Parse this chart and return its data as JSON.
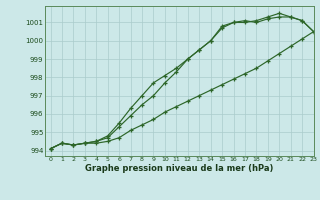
{
  "bg_color": "#cce8e8",
  "grid_color": "#aacccc",
  "line_color": "#2d6629",
  "title": "Graphe pression niveau de la mer (hPa)",
  "xlim": [
    -0.5,
    23
  ],
  "ylim": [
    993.7,
    1001.9
  ],
  "yticks": [
    994,
    995,
    996,
    997,
    998,
    999,
    1000,
    1001
  ],
  "xticks": [
    0,
    1,
    2,
    3,
    4,
    5,
    6,
    7,
    8,
    9,
    10,
    11,
    12,
    13,
    14,
    15,
    16,
    17,
    18,
    19,
    20,
    21,
    22,
    23
  ],
  "line1": [
    994.1,
    994.4,
    994.3,
    994.4,
    994.4,
    994.5,
    994.7,
    995.1,
    995.4,
    995.7,
    996.1,
    996.4,
    996.7,
    997.0,
    997.3,
    997.6,
    997.9,
    998.2,
    998.5,
    998.9,
    999.3,
    999.7,
    1000.1,
    1000.5
  ],
  "line2": [
    994.1,
    994.4,
    994.3,
    994.4,
    994.5,
    994.7,
    995.3,
    995.9,
    996.5,
    997.0,
    997.7,
    998.3,
    999.0,
    999.5,
    1000.0,
    1000.7,
    1001.0,
    1001.1,
    1001.0,
    1001.2,
    1001.3,
    1001.3,
    1001.1,
    1000.5
  ],
  "line3": [
    994.1,
    994.4,
    994.3,
    994.4,
    994.5,
    994.8,
    995.5,
    996.3,
    997.0,
    997.7,
    998.1,
    998.5,
    999.0,
    999.5,
    1000.0,
    1000.8,
    1001.0,
    1001.0,
    1001.1,
    1001.3,
    1001.5,
    1001.3,
    1001.1,
    1000.5
  ]
}
